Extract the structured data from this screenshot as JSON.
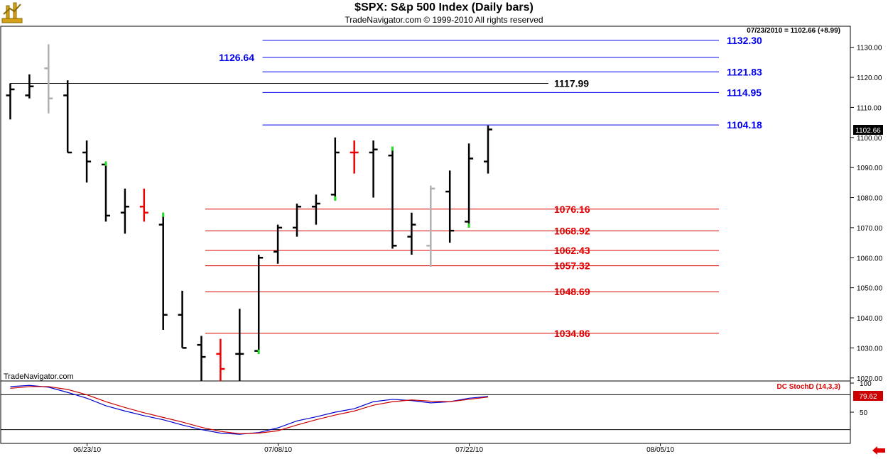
{
  "header": {
    "title": "$SPX:  S&p 500 Index  (Daily bars)",
    "copyright": "TradeNavigator.com © 1999-2010 All rights reserved"
  },
  "price_panel": {
    "last_bar_readout": "07/23/2010 = 1102.66 (+8.99)",
    "watermark": "TradeNavigator.com",
    "current_price_label": "1102.66"
  },
  "stoch_panel": {
    "label": "DC StochD (14,3,3)",
    "current_value_label": "79.62"
  },
  "colors": {
    "resistance": "#0000ee",
    "support": "#dd0000",
    "pivot": "#000000",
    "stoch_k": "#0000cc",
    "stoch_d": "#cc0000",
    "up_accent": "#22dd22",
    "down_accent": "#ee0000",
    "gray_bar": "#b0b0b0"
  },
  "chart_data": [
    {
      "type": "ohlc",
      "title": "$SPX:  S&p 500 Index  (Daily bars)",
      "ylim": [
        1019,
        1137
      ],
      "y_ticks": [
        1020,
        1030,
        1040,
        1050,
        1060,
        1070,
        1080,
        1090,
        1100,
        1110,
        1120,
        1130
      ],
      "y_tick_labels": [
        "1020.00",
        "1030.00",
        "1040.00",
        "1050.00",
        "1060.00",
        "1070.00",
        "1080.00",
        "1090.00",
        "1100.00",
        "1110.00",
        "1120.00",
        "1130.00"
      ],
      "x_labels": [
        {
          "label": "06/23/10",
          "bar_index": 4
        },
        {
          "label": "07/08/10",
          "bar_index": 14
        },
        {
          "label": "07/22/10",
          "bar_index": 24
        },
        {
          "label": "08/05/10",
          "bar_index": 34
        }
      ],
      "x_bars_total": 44,
      "bars": [
        {
          "o": 1114,
          "h": 1118,
          "l": 1106,
          "c": 1116,
          "color": "black"
        },
        {
          "o": 1114,
          "h": 1121,
          "l": 1113,
          "c": 1117,
          "color": "black"
        },
        {
          "o": 1123,
          "h": 1131,
          "l": 1108,
          "c": 1113,
          "color": "gray"
        },
        {
          "o": 1114,
          "h": 1119,
          "l": 1095,
          "c": 1095,
          "color": "black"
        },
        {
          "o": 1095,
          "h": 1099,
          "l": 1085,
          "c": 1092,
          "color": "black"
        },
        {
          "o": 1091,
          "h": 1092,
          "l": 1072,
          "c": 1074,
          "color": "black",
          "accent": "up"
        },
        {
          "o": 1075,
          "h": 1083,
          "l": 1068,
          "c": 1077,
          "color": "black"
        },
        {
          "o": 1077,
          "h": 1083,
          "l": 1072,
          "c": 1075,
          "color": "red"
        },
        {
          "o": 1071,
          "h": 1075,
          "l": 1036,
          "c": 1041,
          "color": "black",
          "accent": "up"
        },
        {
          "o": 1041,
          "h": 1049,
          "l": 1030,
          "c": 1030,
          "color": "black"
        },
        {
          "o": 1031,
          "h": 1034,
          "l": 1011,
          "c": 1027,
          "color": "black"
        },
        {
          "o": 1028,
          "h": 1033,
          "l": 1010,
          "c": 1023,
          "color": "red"
        },
        {
          "o": 1028,
          "h": 1043,
          "l": 1014,
          "c": 1028,
          "color": "black"
        },
        {
          "o": 1029,
          "h": 1061,
          "l": 1028,
          "c": 1060,
          "color": "black",
          "accent": "up"
        },
        {
          "o": 1062,
          "h": 1071,
          "l": 1058,
          "c": 1070,
          "color": "black"
        },
        {
          "o": 1070,
          "h": 1078,
          "l": 1067,
          "c": 1077,
          "color": "black"
        },
        {
          "o": 1077,
          "h": 1081,
          "l": 1071,
          "c": 1078,
          "color": "black"
        },
        {
          "o": 1081,
          "h": 1100,
          "l": 1079,
          "c": 1095,
          "color": "black",
          "accent": "up"
        },
        {
          "o": 1095,
          "h": 1099,
          "l": 1088,
          "c": 1095,
          "color": "red"
        },
        {
          "o": 1095,
          "h": 1099,
          "l": 1080,
          "c": 1096,
          "color": "black"
        },
        {
          "o": 1094,
          "h": 1097,
          "l": 1063,
          "c": 1064,
          "color": "black",
          "accent": "up"
        },
        {
          "o": 1067,
          "h": 1075,
          "l": 1061,
          "c": 1071,
          "color": "black"
        },
        {
          "o": 1064,
          "h": 1084,
          "l": 1057,
          "c": 1083,
          "color": "gray"
        },
        {
          "o": 1082,
          "h": 1089,
          "l": 1065,
          "c": 1069,
          "color": "black"
        },
        {
          "o": 1072,
          "h": 1098,
          "l": 1070,
          "c": 1093,
          "color": "black",
          "accent": "up"
        },
        {
          "o": 1092,
          "h": 1104,
          "l": 1088,
          "c": 1102.66,
          "color": "black"
        }
      ],
      "levels": [
        {
          "value": 1132.3,
          "label": "1132.30",
          "color": "blue",
          "x_start_bar": 13.2
        },
        {
          "value": 1126.64,
          "label": "1126.64",
          "color": "blue",
          "x_start_bar": 13.2,
          "label_side": "left"
        },
        {
          "value": 1121.83,
          "label": "1121.83",
          "color": "blue",
          "x_start_bar": 13.2
        },
        {
          "value": 1117.99,
          "label": "1117.99",
          "color": "black",
          "x_start_bar": 0
        },
        {
          "value": 1114.95,
          "label": "1114.95",
          "color": "blue",
          "x_start_bar": 13.2
        },
        {
          "value": 1104.18,
          "label": "1104.18",
          "color": "blue",
          "x_start_bar": 13.2
        },
        {
          "value": 1076.16,
          "label": "1076.16",
          "color": "red",
          "x_start_bar": 10.2
        },
        {
          "value": 1068.92,
          "label": "1068.92",
          "color": "red",
          "x_start_bar": 10.2
        },
        {
          "value": 1062.43,
          "label": "1062.43",
          "color": "red",
          "x_start_bar": 10.2
        },
        {
          "value": 1057.32,
          "label": "1057.32",
          "color": "red",
          "x_start_bar": 10.2
        },
        {
          "value": 1048.69,
          "label": "1048.69",
          "color": "red",
          "x_start_bar": 10.2
        },
        {
          "value": 1034.86,
          "label": "1034.86",
          "color": "red",
          "x_start_bar": 10.2
        }
      ]
    },
    {
      "type": "line",
      "title": "DC StochD (14,3,3)",
      "ylim": [
        0,
        100
      ],
      "y_ticks": [
        50,
        100
      ],
      "y_tick_labels": [
        "50",
        "100"
      ],
      "reference_lines": [
        80,
        20
      ],
      "series": [
        {
          "name": "%K",
          "color": "blue",
          "values": [
            94,
            96,
            93,
            84,
            74,
            61,
            52,
            44,
            37,
            28,
            20,
            14,
            12,
            15,
            23,
            35,
            42,
            50,
            56,
            68,
            72,
            70,
            66,
            68,
            74,
            77
          ]
        },
        {
          "name": "%D",
          "color": "red",
          "values": [
            91,
            94,
            94,
            89,
            80,
            68,
            58,
            49,
            41,
            33,
            24,
            17,
            13,
            14,
            18,
            28,
            37,
            45,
            52,
            62,
            68,
            71,
            69,
            68,
            72,
            76
          ]
        }
      ]
    }
  ]
}
